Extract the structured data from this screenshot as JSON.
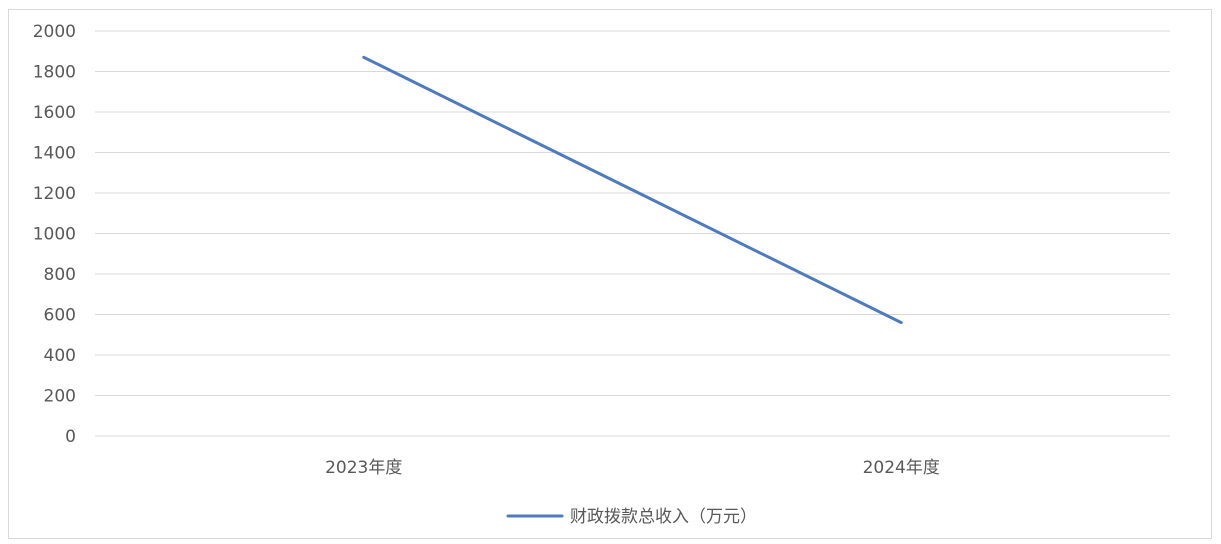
{
  "chart_data": {
    "type": "line",
    "categories": [
      "2023年度",
      "2024年度"
    ],
    "series": [
      {
        "name": "财政拨款总收入（万元）",
        "values": [
          1870,
          560
        ],
        "color": "#4e7bbf"
      }
    ],
    "ylim": [
      0,
      2000
    ],
    "yticks": [
      0,
      200,
      400,
      600,
      800,
      1000,
      1200,
      1400,
      1600,
      1800,
      2000
    ],
    "grid": true,
    "legend_position": "bottom",
    "gridline_color": "#d9d9d9",
    "axis_label_color": "#595959"
  }
}
